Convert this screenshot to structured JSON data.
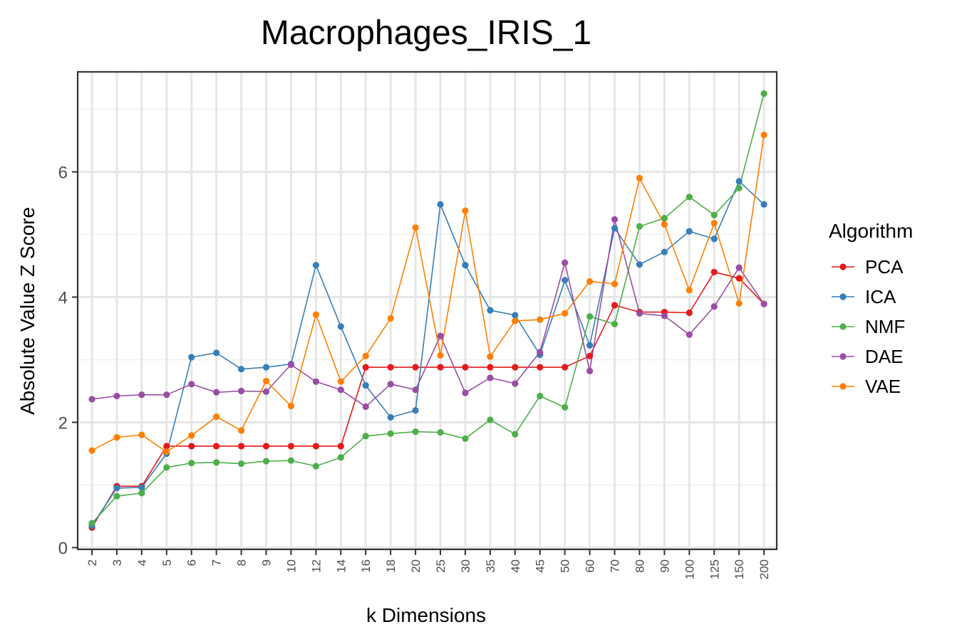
{
  "chart_data": {
    "type": "line",
    "title": "Macrophages_IRIS_1",
    "xlabel": "k Dimensions",
    "ylabel": "Absolute Value Z Score",
    "categories": [
      "2",
      "3",
      "4",
      "5",
      "6",
      "7",
      "8",
      "9",
      "10",
      "12",
      "14",
      "16",
      "18",
      "20",
      "25",
      "30",
      "35",
      "40",
      "45",
      "50",
      "60",
      "70",
      "80",
      "90",
      "100",
      "125",
      "150",
      "200"
    ],
    "ylim": [
      0,
      7.4
    ],
    "y_ticks": [
      0,
      2,
      4,
      6
    ],
    "grid": true,
    "legend": {
      "title": "Algorithm",
      "position": "right"
    },
    "series": [
      {
        "name": "PCA",
        "color": "#e41a1c",
        "values": [
          0.32,
          0.98,
          0.98,
          1.62,
          1.62,
          1.62,
          1.62,
          1.62,
          1.62,
          1.62,
          1.62,
          2.88,
          2.88,
          2.88,
          2.88,
          2.88,
          2.88,
          2.88,
          2.88,
          2.88,
          3.06,
          3.87,
          3.76,
          3.76,
          3.75,
          4.4,
          4.3,
          3.89
        ]
      },
      {
        "name": "ICA",
        "color": "#377eb8",
        "values": [
          0.35,
          0.95,
          0.96,
          1.5,
          3.04,
          3.11,
          2.85,
          2.88,
          2.93,
          4.51,
          3.53,
          2.59,
          2.08,
          2.19,
          5.48,
          4.51,
          3.79,
          3.71,
          3.08,
          4.27,
          3.23,
          5.1,
          4.52,
          4.72,
          5.05,
          4.93,
          5.85,
          5.48
        ]
      },
      {
        "name": "NMF",
        "color": "#4daf4a",
        "values": [
          0.39,
          0.82,
          0.87,
          1.28,
          1.35,
          1.36,
          1.34,
          1.38,
          1.39,
          1.3,
          1.44,
          1.78,
          1.82,
          1.85,
          1.84,
          1.74,
          2.04,
          1.81,
          2.42,
          2.24,
          3.69,
          3.57,
          5.13,
          5.26,
          5.6,
          5.31,
          5.74,
          7.25
        ]
      },
      {
        "name": "DAE",
        "color": "#984ea3",
        "values": [
          2.37,
          2.42,
          2.44,
          2.44,
          2.61,
          2.48,
          2.5,
          2.49,
          2.92,
          2.65,
          2.52,
          2.25,
          2.61,
          2.52,
          3.38,
          2.47,
          2.71,
          2.62,
          3.12,
          4.55,
          2.82,
          5.24,
          3.74,
          3.7,
          3.4,
          3.85,
          4.47,
          3.89
        ]
      },
      {
        "name": "VAE",
        "color": "#ff7f00",
        "values": [
          1.55,
          1.76,
          1.8,
          1.53,
          1.79,
          2.09,
          1.87,
          2.66,
          2.26,
          3.72,
          2.65,
          3.06,
          3.66,
          5.11,
          3.07,
          5.38,
          3.05,
          3.62,
          3.64,
          3.74,
          4.25,
          4.21,
          5.9,
          5.16,
          4.11,
          5.18,
          3.9,
          6.59
        ]
      }
    ]
  }
}
